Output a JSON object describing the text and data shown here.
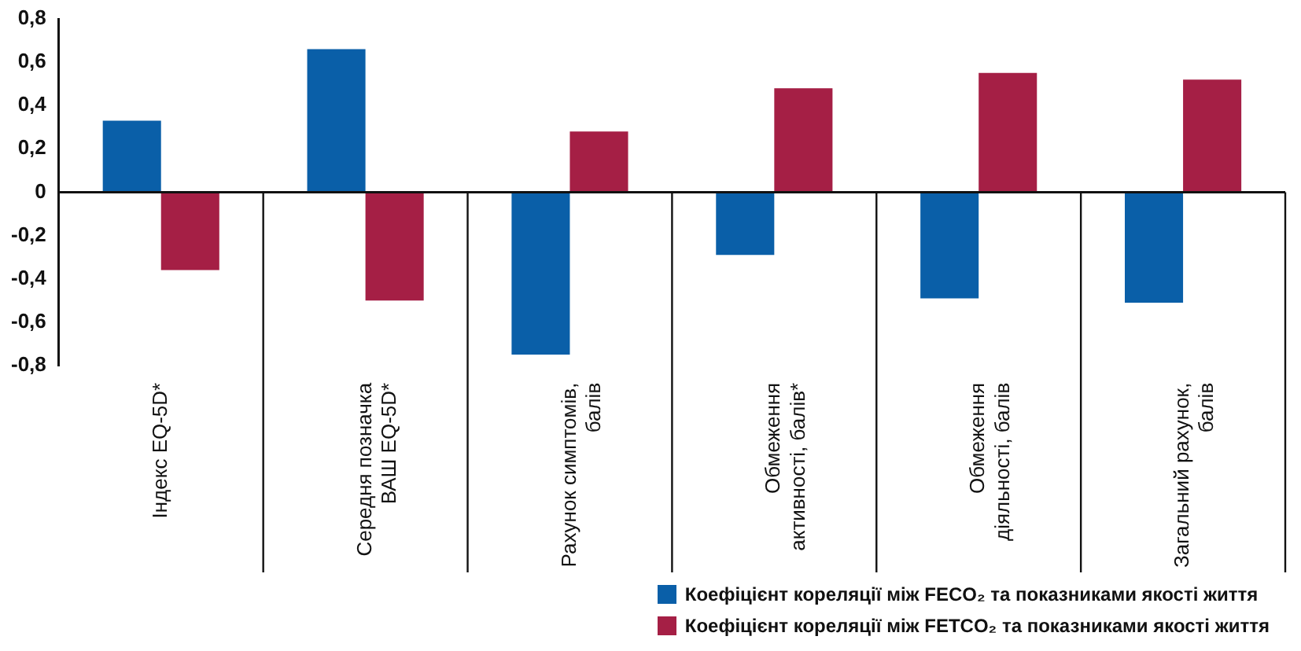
{
  "chart_data": {
    "type": "bar",
    "categories": [
      "Індекс EQ-5D*",
      "Середня позначка ВАШ EQ-5D*",
      "Рахунок симптомів, балів",
      "Обмеження активності, балів*",
      "Обмеження діяльності, балів",
      "Загальний рахунок, балів"
    ],
    "series": [
      {
        "name": "Коефіцієнт кореляції між FECO₂ та показниками якості життя",
        "color": "#0a5fa8",
        "values": [
          0.33,
          0.66,
          -0.75,
          -0.29,
          -0.49,
          -0.51
        ]
      },
      {
        "name": "Коефіцієнт кореляції між FETCO₂ та показниками якості життя",
        "color": "#a51f45",
        "values": [
          -0.36,
          -0.5,
          0.28,
          0.48,
          0.55,
          0.52
        ]
      }
    ],
    "ylim": [
      -0.8,
      0.8
    ],
    "yticks": [
      {
        "value": 0.8,
        "label": "0,8"
      },
      {
        "value": 0.6,
        "label": "0,6"
      },
      {
        "value": 0.4,
        "label": "0,4"
      },
      {
        "value": 0.2,
        "label": "0,2"
      },
      0,
      {
        "value": -0.2,
        "label": "-0,2"
      },
      {
        "value": -0.4,
        "label": "-0,4"
      },
      {
        "value": -0.6,
        "label": "-0,6"
      },
      {
        "value": -0.8,
        "label": "-0,8"
      }
    ],
    "grid": false,
    "legend": "bottom right"
  }
}
